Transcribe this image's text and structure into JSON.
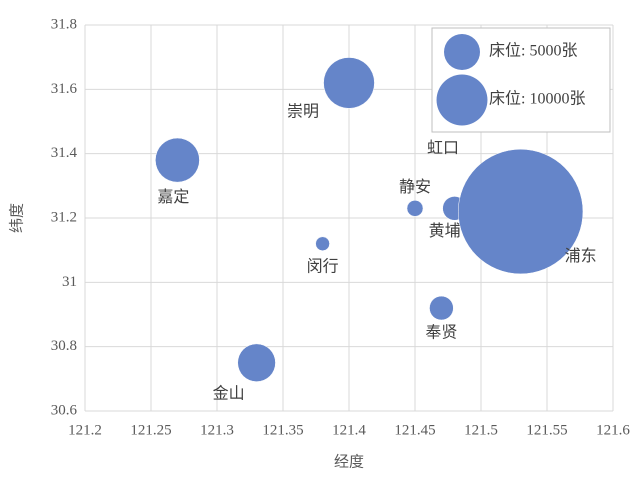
{
  "chart_data": {
    "type": "bubble",
    "xlabel": "经度",
    "ylabel": "纬度",
    "color": "#6585c9",
    "grid": true,
    "xlim": [
      121.2,
      121.6
    ],
    "xticks": [
      121.2,
      121.25,
      121.3,
      121.35,
      121.4,
      121.45,
      121.5,
      121.55,
      121.6
    ],
    "ylim": [
      30.6,
      31.8
    ],
    "yticks": [
      30.6,
      30.8,
      31,
      31.2,
      31.4,
      31.6,
      31.8
    ],
    "points": [
      {
        "name": "嘉定",
        "x": 121.27,
        "y": 31.38,
        "size": 7500
      },
      {
        "name": "崇明",
        "x": 121.4,
        "y": 31.62,
        "size": 10000
      },
      {
        "name": "金山",
        "x": 121.33,
        "y": 30.75,
        "size": 5500
      },
      {
        "name": "闵行",
        "x": 121.38,
        "y": 31.12,
        "size": 750
      },
      {
        "name": "静安",
        "x": 121.45,
        "y": 31.23,
        "size": 1000
      },
      {
        "name": "黄埔",
        "x": 121.48,
        "y": 31.23,
        "size": 2200
      },
      {
        "name": "虹口",
        "x": 121.5,
        "y": 31.27,
        "size": 1000
      },
      {
        "name": "浦东",
        "x": 121.53,
        "y": 31.22,
        "size": 60000
      },
      {
        "name": "奉贤",
        "x": 121.47,
        "y": 30.92,
        "size": 2200
      }
    ],
    "legend": [
      {
        "label": "床位: 5000张",
        "size": 5000
      },
      {
        "label": "床位: 10000张",
        "size": 10000
      }
    ],
    "legend_position": "upper right"
  }
}
